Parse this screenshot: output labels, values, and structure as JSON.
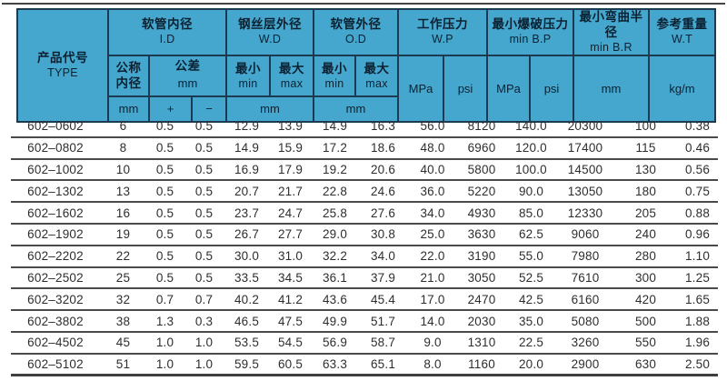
{
  "colors": {
    "header_bg": "#45a7ce",
    "header_border": "#1c3a52",
    "header_text": "#0b2132",
    "row_line": "#4a4a4a",
    "data_text": "#2e2e2e"
  },
  "header": {
    "product_code": {
      "zh": "产品代号",
      "en": "TYPE"
    },
    "id": {
      "zh": "软管内径",
      "en": "I.D"
    },
    "wd": {
      "zh": "钢丝层外径",
      "en": "W.D"
    },
    "od": {
      "zh": "软管外径",
      "en": "O.D"
    },
    "wp": {
      "zh": "工作压力",
      "en": "W.P"
    },
    "bp": {
      "zh": "最小爆破压力",
      "en": "min B.P"
    },
    "br": {
      "zh": "最小弯曲半径",
      "en": "min B.R"
    },
    "wt": {
      "zh": "参考重量",
      "en": "W.T"
    },
    "nominal": {
      "line1": "公称",
      "line2": "内径"
    },
    "tolerance": {
      "line1": "公差",
      "line2": "mm"
    },
    "min": {
      "zh": "最小",
      "en": "min"
    },
    "max": {
      "zh": "最大",
      "en": "max"
    },
    "units": {
      "mm": "mm",
      "mpa": "MPa",
      "psi": "psi",
      "kgm": "kg/m",
      "plus": "+",
      "minus": "−"
    }
  },
  "rows": [
    [
      "602–0602",
      "6",
      "0.5",
      "0.5",
      "12.9",
      "13.9",
      "14.9",
      "16.3",
      "56.0",
      "8120",
      "140.0",
      "20300",
      "100",
      "0.38"
    ],
    [
      "602–0802",
      "8",
      "0.5",
      "0.5",
      "14.9",
      "15.9",
      "17.2",
      "18.6",
      "48.0",
      "6960",
      "120.0",
      "17400",
      "115",
      "0.46"
    ],
    [
      "602–1002",
      "10",
      "0.5",
      "0.5",
      "16.9",
      "17.9",
      "19.2",
      "20.6",
      "40.0",
      "5800",
      "100.0",
      "14500",
      "130",
      "0.56"
    ],
    [
      "602–1302",
      "13",
      "0.5",
      "0.5",
      "20.7",
      "21.7",
      "22.8",
      "24.6",
      "36.0",
      "5220",
      "90.0",
      "13050",
      "180",
      "0.75"
    ],
    [
      "602–1602",
      "16",
      "0.5",
      "0.5",
      "23.7",
      "24.7",
      "25.8",
      "27.6",
      "34.0",
      "4930",
      "85.0",
      "12330",
      "205",
      "0.88"
    ],
    [
      "602–1902",
      "19",
      "0.5",
      "0.5",
      "26.7",
      "27.7",
      "29.0",
      "30.8",
      "25.0",
      "3630",
      "62.5",
      "9060",
      "240",
      "0.96"
    ],
    [
      "602–2202",
      "22",
      "0.5",
      "0.5",
      "30.0",
      "31.0",
      "32.2",
      "34.0",
      "22.0",
      "3190",
      "55.0",
      "7980",
      "280",
      "1.10"
    ],
    [
      "602–2502",
      "25",
      "0.5",
      "0.5",
      "33.5",
      "34.5",
      "36.1",
      "37.9",
      "21.0",
      "3050",
      "52.5",
      "7610",
      "300",
      "1.25"
    ],
    [
      "602–3202",
      "32",
      "0.7",
      "0.7",
      "40.2",
      "41.2",
      "43.6",
      "45.4",
      "17.0",
      "2470",
      "42.5",
      "6160",
      "420",
      "1.65"
    ],
    [
      "602–3802",
      "38",
      "1.3",
      "0.3",
      "46.5",
      "47.5",
      "49.9",
      "51.7",
      "14.0",
      "2030",
      "35.0",
      "5080",
      "500",
      "1.88"
    ],
    [
      "602–4502",
      "45",
      "1.0",
      "1.0",
      "53.5",
      "54.5",
      "56.9",
      "58.7",
      "9.0",
      "1310",
      "22.5",
      "3260",
      "550",
      "1.96"
    ],
    [
      "602–5102",
      "51",
      "1.0",
      "1.0",
      "59.5",
      "60.5",
      "63.3",
      "65.1",
      "8.0",
      "1160",
      "20.0",
      "2900",
      "630",
      "2.50"
    ]
  ]
}
